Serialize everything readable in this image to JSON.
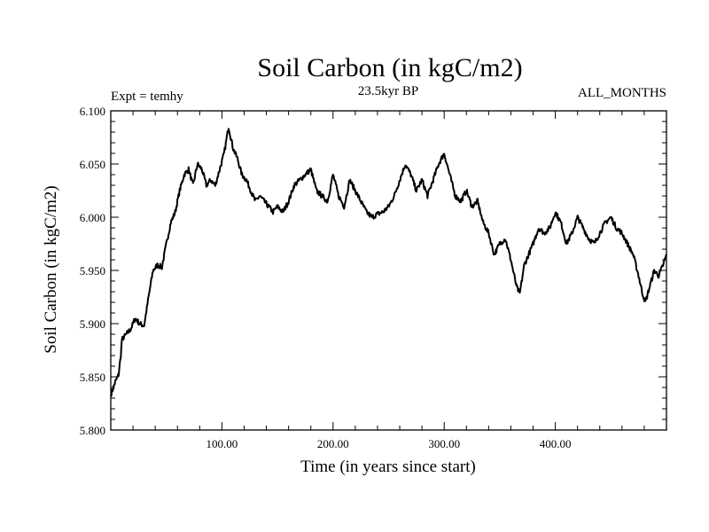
{
  "chart_data": {
    "type": "line",
    "title": "Soil Carbon (in kgC/m2)",
    "subtitle": "23.5kyr BP",
    "experiment_label": "Expt = temhy",
    "months_label": "ALL_MONTHS",
    "xlabel": "Time (in years since start)",
    "ylabel": "Soil Carbon (in kgC/m2)",
    "xlim": [
      0,
      500
    ],
    "ylim": [
      5.8,
      6.1
    ],
    "x_ticks": [
      100,
      200,
      300,
      400
    ],
    "x_tick_labels": [
      "100.00",
      "200.00",
      "300.00",
      "400.00"
    ],
    "y_ticks": [
      5.8,
      5.85,
      5.9,
      5.95,
      6.0,
      6.05,
      6.1
    ],
    "y_tick_labels": [
      "5.800",
      "5.850",
      "5.900",
      "5.950",
      "6.000",
      "6.050",
      "6.100"
    ],
    "series": [
      {
        "name": "Soil Carbon",
        "color": "#000000",
        "points": [
          [
            0,
            5.833
          ],
          [
            4,
            5.845
          ],
          [
            7,
            5.852
          ],
          [
            9,
            5.87
          ],
          [
            10,
            5.885
          ],
          [
            14,
            5.89
          ],
          [
            18,
            5.895
          ],
          [
            22,
            5.905
          ],
          [
            26,
            5.9
          ],
          [
            30,
            5.898
          ],
          [
            34,
            5.925
          ],
          [
            38,
            5.95
          ],
          [
            42,
            5.955
          ],
          [
            46,
            5.953
          ],
          [
            50,
            5.975
          ],
          [
            54,
            5.995
          ],
          [
            58,
            6.005
          ],
          [
            62,
            6.025
          ],
          [
            66,
            6.04
          ],
          [
            70,
            6.045
          ],
          [
            74,
            6.03
          ],
          [
            78,
            6.05
          ],
          [
            82,
            6.045
          ],
          [
            86,
            6.03
          ],
          [
            90,
            6.035
          ],
          [
            94,
            6.03
          ],
          [
            98,
            6.045
          ],
          [
            102,
            6.06
          ],
          [
            106,
            6.085
          ],
          [
            110,
            6.065
          ],
          [
            114,
            6.055
          ],
          [
            118,
            6.04
          ],
          [
            122,
            6.035
          ],
          [
            126,
            6.025
          ],
          [
            130,
            6.015
          ],
          [
            134,
            6.02
          ],
          [
            138,
            6.015
          ],
          [
            142,
            6.01
          ],
          [
            146,
            6.005
          ],
          [
            150,
            6.01
          ],
          [
            155,
            6.005
          ],
          [
            160,
            6.015
          ],
          [
            165,
            6.03
          ],
          [
            170,
            6.035
          ],
          [
            175,
            6.04
          ],
          [
            180,
            6.045
          ],
          [
            185,
            6.025
          ],
          [
            190,
            6.02
          ],
          [
            195,
            6.015
          ],
          [
            200,
            6.04
          ],
          [
            205,
            6.02
          ],
          [
            210,
            6.01
          ],
          [
            215,
            6.035
          ],
          [
            220,
            6.025
          ],
          [
            225,
            6.015
          ],
          [
            230,
            6.005
          ],
          [
            235,
            6.0
          ],
          [
            240,
            6.003
          ],
          [
            245,
            6.005
          ],
          [
            250,
            6.01
          ],
          [
            255,
            6.02
          ],
          [
            260,
            6.035
          ],
          [
            265,
            6.05
          ],
          [
            270,
            6.04
          ],
          [
            275,
            6.025
          ],
          [
            280,
            6.035
          ],
          [
            285,
            6.02
          ],
          [
            290,
            6.035
          ],
          [
            295,
            6.05
          ],
          [
            300,
            6.06
          ],
          [
            305,
            6.04
          ],
          [
            310,
            6.02
          ],
          [
            315,
            6.015
          ],
          [
            320,
            6.025
          ],
          [
            325,
            6.01
          ],
          [
            330,
            6.015
          ],
          [
            335,
            5.995
          ],
          [
            340,
            5.985
          ],
          [
            345,
            5.965
          ],
          [
            350,
            5.975
          ],
          [
            355,
            5.98
          ],
          [
            360,
            5.96
          ],
          [
            365,
            5.935
          ],
          [
            368,
            5.928
          ],
          [
            372,
            5.955
          ],
          [
            376,
            5.965
          ],
          [
            380,
            5.975
          ],
          [
            385,
            5.99
          ],
          [
            390,
            5.985
          ],
          [
            395,
            5.99
          ],
          [
            400,
            6.005
          ],
          [
            405,
            5.995
          ],
          [
            410,
            5.975
          ],
          [
            415,
            5.985
          ],
          [
            420,
            6.0
          ],
          [
            425,
            5.99
          ],
          [
            430,
            5.98
          ],
          [
            435,
            5.975
          ],
          [
            440,
            5.985
          ],
          [
            445,
            5.995
          ],
          [
            450,
            6.0
          ],
          [
            455,
            5.99
          ],
          [
            460,
            5.985
          ],
          [
            465,
            5.975
          ],
          [
            470,
            5.965
          ],
          [
            475,
            5.945
          ],
          [
            478,
            5.93
          ],
          [
            481,
            5.92
          ],
          [
            485,
            5.935
          ],
          [
            489,
            5.95
          ],
          [
            493,
            5.945
          ],
          [
            497,
            5.955
          ],
          [
            500,
            5.965
          ]
        ]
      }
    ]
  }
}
